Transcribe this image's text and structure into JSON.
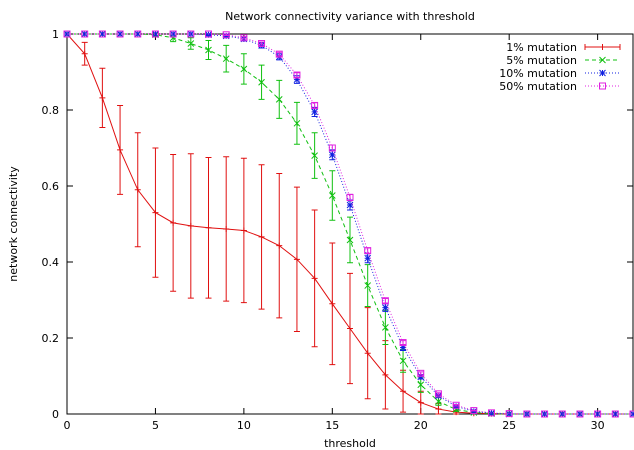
{
  "chart_data": {
    "type": "line",
    "title": "Network connectivity variance with threshold",
    "xlabel": "threshold",
    "ylabel": "network connectivity",
    "xlim": [
      0,
      32
    ],
    "ylim": [
      0,
      1
    ],
    "xticks": [
      0,
      5,
      10,
      15,
      20,
      25,
      30
    ],
    "yticks": [
      0,
      0.2,
      0.4,
      0.6,
      0.8,
      1
    ],
    "ytick_labels": [
      "0",
      "0.2",
      "0.4",
      "0.6",
      "0.8",
      "1"
    ],
    "grid": false,
    "legend_position": "top-right",
    "x": [
      0,
      1,
      2,
      3,
      4,
      5,
      6,
      7,
      8,
      9,
      10,
      11,
      12,
      13,
      14,
      15,
      16,
      17,
      18,
      19,
      20,
      21,
      22,
      23,
      24,
      25,
      26,
      27,
      28,
      29,
      30,
      31,
      32
    ],
    "series": [
      {
        "name": "1% mutation",
        "color": "#e01010",
        "marker": "plus",
        "dash": "",
        "values": [
          1,
          0.948,
          0.832,
          0.695,
          0.59,
          0.53,
          0.503,
          0.495,
          0.49,
          0.487,
          0.483,
          0.466,
          0.443,
          0.407,
          0.357,
          0.29,
          0.225,
          0.16,
          0.103,
          0.06,
          0.03,
          0.013,
          0.005,
          0.002,
          0.001,
          0,
          0,
          0,
          0,
          0,
          0,
          0,
          0
        ],
        "err": [
          0,
          0.03,
          0.078,
          0.117,
          0.15,
          0.17,
          0.18,
          0.19,
          0.185,
          0.19,
          0.19,
          0.19,
          0.19,
          0.19,
          0.18,
          0.16,
          0.145,
          0.12,
          0.09,
          0.055,
          0.03,
          0.015,
          0.005,
          0.003,
          0.001,
          0,
          0,
          0,
          0,
          0,
          0,
          0,
          0
        ]
      },
      {
        "name": "5% mutation",
        "color": "#10c010",
        "marker": "x",
        "dash": "4,3",
        "values": [
          1,
          1,
          1,
          1,
          1,
          0.998,
          0.99,
          0.975,
          0.958,
          0.935,
          0.908,
          0.873,
          0.828,
          0.765,
          0.68,
          0.575,
          0.458,
          0.338,
          0.228,
          0.14,
          0.077,
          0.033,
          0.012,
          0.004,
          0.001,
          0,
          0,
          0,
          0,
          0,
          0,
          0,
          0
        ],
        "err": [
          0,
          0,
          0,
          0,
          0,
          0.003,
          0.01,
          0.015,
          0.025,
          0.035,
          0.04,
          0.045,
          0.05,
          0.055,
          0.06,
          0.065,
          0.06,
          0.055,
          0.045,
          0.03,
          0.02,
          0.01,
          0.005,
          0.002,
          0.001,
          0,
          0,
          0,
          0,
          0,
          0,
          0,
          0
        ]
      },
      {
        "name": "10% mutation",
        "color": "#1020e0",
        "marker": "star",
        "dash": "1,2",
        "values": [
          1,
          1,
          1,
          1,
          1,
          1,
          1,
          1,
          0.998,
          0.995,
          0.987,
          0.97,
          0.94,
          0.88,
          0.795,
          0.682,
          0.55,
          0.41,
          0.28,
          0.175,
          0.098,
          0.048,
          0.02,
          0.007,
          0.002,
          0,
          0,
          0,
          0,
          0,
          0,
          0,
          0
        ],
        "err": [
          0,
          0,
          0,
          0,
          0,
          0,
          0,
          0,
          0.002,
          0.003,
          0.005,
          0.007,
          0.008,
          0.01,
          0.012,
          0.013,
          0.013,
          0.012,
          0.01,
          0.008,
          0.006,
          0.004,
          0.002,
          0.001,
          0,
          0,
          0,
          0,
          0,
          0,
          0,
          0,
          0
        ]
      },
      {
        "name": "50% mutation",
        "color": "#e020e0",
        "marker": "square",
        "dash": "1,2",
        "values": [
          1,
          1,
          1,
          1,
          1,
          1,
          1,
          1,
          1,
          0.998,
          0.99,
          0.975,
          0.947,
          0.892,
          0.812,
          0.7,
          0.57,
          0.43,
          0.298,
          0.188,
          0.107,
          0.053,
          0.023,
          0.009,
          0.003,
          0.001,
          0,
          0,
          0,
          0,
          0,
          0,
          0
        ],
        "err": [
          0,
          0,
          0,
          0,
          0,
          0,
          0,
          0,
          0,
          0.002,
          0.003,
          0.004,
          0.005,
          0.006,
          0.007,
          0.008,
          0.008,
          0.007,
          0.006,
          0.005,
          0.004,
          0.003,
          0.002,
          0.001,
          0,
          0,
          0,
          0,
          0,
          0,
          0,
          0,
          0
        ]
      }
    ]
  }
}
